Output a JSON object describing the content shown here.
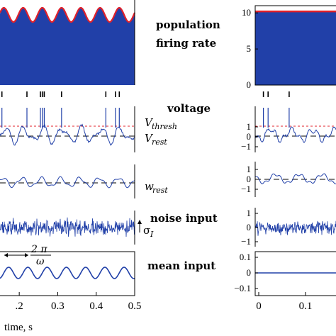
{
  "labels": {
    "population": [
      "population",
      "firing rate"
    ],
    "voltage": "voltage",
    "v_thresh": "V",
    "v_thresh_sub": "thresh",
    "v_rest": "V",
    "v_rest_sub": "rest",
    "w_rest": "w",
    "w_rest_sub": "rest",
    "noise": "noise input",
    "sigma": "σ",
    "sigma_sub": "I",
    "mean": "mean input",
    "period_num": "2 π",
    "period_den": "ω",
    "xlabel": "time, s"
  },
  "colors": {
    "blue": "#2140a8",
    "red": "#e0202a"
  },
  "chart_data": [
    {
      "type": "area",
      "panel": "left-population-firing-rate",
      "x_range": [
        0.15,
        0.5
      ],
      "description_values": "oscillating firing rate, 7 cycles over window",
      "x_ticks": [
        0.2,
        0.3,
        0.4,
        0.5
      ],
      "x_tick_labels": [
        ".2",
        "0.3",
        "0.4",
        "0.5"
      ]
    },
    {
      "type": "area",
      "panel": "right-population-firing-rate",
      "y_ticks": [
        0,
        5,
        10
      ],
      "y_tick_labels": [
        "0",
        "5",
        "10"
      ],
      "ylim": [
        0,
        11
      ],
      "constant_level": 10.2
    },
    {
      "type": "scatter",
      "panel": "left-spike-raster",
      "x": [
        0.155,
        0.22,
        0.255,
        0.26,
        0.265,
        0.31,
        0.425,
        0.45,
        0.46
      ]
    },
    {
      "type": "scatter",
      "panel": "right-spike-raster",
      "x": [
        0.01,
        0.02,
        0.065
      ]
    },
    {
      "type": "line",
      "panel": "right-voltage",
      "y_ticks": [
        -1,
        0,
        1
      ],
      "y_tick_labels": [
        "−1",
        "0",
        "1"
      ]
    },
    {
      "type": "line",
      "panel": "right-adaptation",
      "y_ticks": [
        -1,
        0,
        1
      ],
      "y_tick_labels": [
        "−1",
        "0",
        "1"
      ]
    },
    {
      "type": "line",
      "panel": "right-noise",
      "y_ticks": [
        -1,
        0,
        1
      ],
      "y_tick_labels": [
        "−1",
        "0",
        "1"
      ]
    },
    {
      "type": "line",
      "panel": "right-mean-input",
      "y_ticks": [
        -0.1,
        0,
        0.1
      ],
      "y_tick_labels": [
        "−0.1",
        "0",
        "0.1"
      ],
      "constant_level": 0
    },
    {
      "type": "line",
      "panel": "right-x-axis",
      "x_ticks": [
        0,
        0.1
      ],
      "x_tick_labels": [
        "0",
        "0.1"
      ]
    }
  ]
}
